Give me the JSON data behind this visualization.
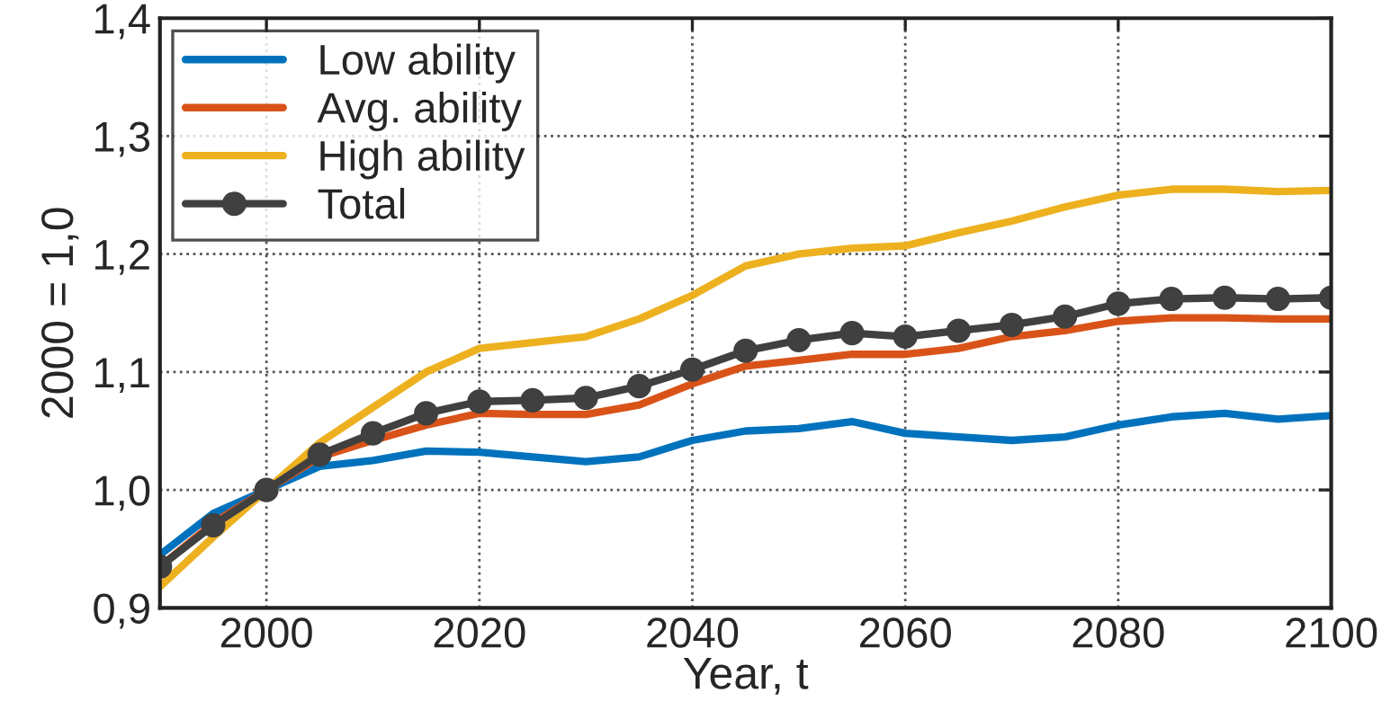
{
  "chart_data": {
    "type": "line",
    "xlabel": "Year, t",
    "ylabel": "2000 = 1,0",
    "x": [
      1990,
      1995,
      2000,
      2005,
      2010,
      2015,
      2020,
      2025,
      2030,
      2035,
      2040,
      2045,
      2050,
      2055,
      2060,
      2065,
      2070,
      2075,
      2080,
      2085,
      2090,
      2095,
      2100
    ],
    "series": [
      {
        "name": "Low ability",
        "color": "#0072bd",
        "marker": "none",
        "values": [
          0.945,
          0.98,
          1.0,
          1.02,
          1.025,
          1.033,
          1.032,
          1.028,
          1.024,
          1.028,
          1.042,
          1.05,
          1.052,
          1.058,
          1.048,
          1.045,
          1.042,
          1.045,
          1.055,
          1.062,
          1.065,
          1.06,
          1.063
        ]
      },
      {
        "name": "Avg. ability",
        "color": "#d95319",
        "marker": "none",
        "values": [
          0.935,
          0.972,
          1.0,
          1.028,
          1.042,
          1.055,
          1.065,
          1.064,
          1.064,
          1.072,
          1.09,
          1.105,
          1.11,
          1.115,
          1.115,
          1.12,
          1.13,
          1.135,
          1.143,
          1.146,
          1.146,
          1.145,
          1.145
        ]
      },
      {
        "name": "High ability",
        "color": "#edb120",
        "marker": "none",
        "values": [
          0.918,
          0.96,
          1.0,
          1.04,
          1.07,
          1.1,
          1.12,
          1.125,
          1.13,
          1.145,
          1.165,
          1.19,
          1.2,
          1.205,
          1.207,
          1.218,
          1.228,
          1.24,
          1.25,
          1.255,
          1.255,
          1.253,
          1.254
        ]
      },
      {
        "name": "Total",
        "color": "#404040",
        "marker": "circle",
        "values": [
          0.935,
          0.97,
          1.0,
          1.03,
          1.048,
          1.065,
          1.075,
          1.076,
          1.078,
          1.088,
          1.102,
          1.118,
          1.127,
          1.133,
          1.13,
          1.135,
          1.14,
          1.147,
          1.158,
          1.162,
          1.163,
          1.162,
          1.163
        ]
      }
    ],
    "xlim": [
      1990,
      2100
    ],
    "xticks": [
      2000,
      2020,
      2040,
      2060,
      2080,
      2100
    ],
    "ylim": [
      0.9,
      1.4
    ],
    "yticks": [
      {
        "value": 0.9,
        "label": "0,9"
      },
      {
        "value": 1.0,
        "label": "1,0"
      },
      {
        "value": 1.1,
        "label": "1,1"
      },
      {
        "value": 1.2,
        "label": "1,2"
      },
      {
        "value": 1.3,
        "label": "1,3"
      },
      {
        "value": 1.4,
        "label": "1,4"
      }
    ],
    "grid": true,
    "legend": "top left",
    "line_style": "solid"
  }
}
